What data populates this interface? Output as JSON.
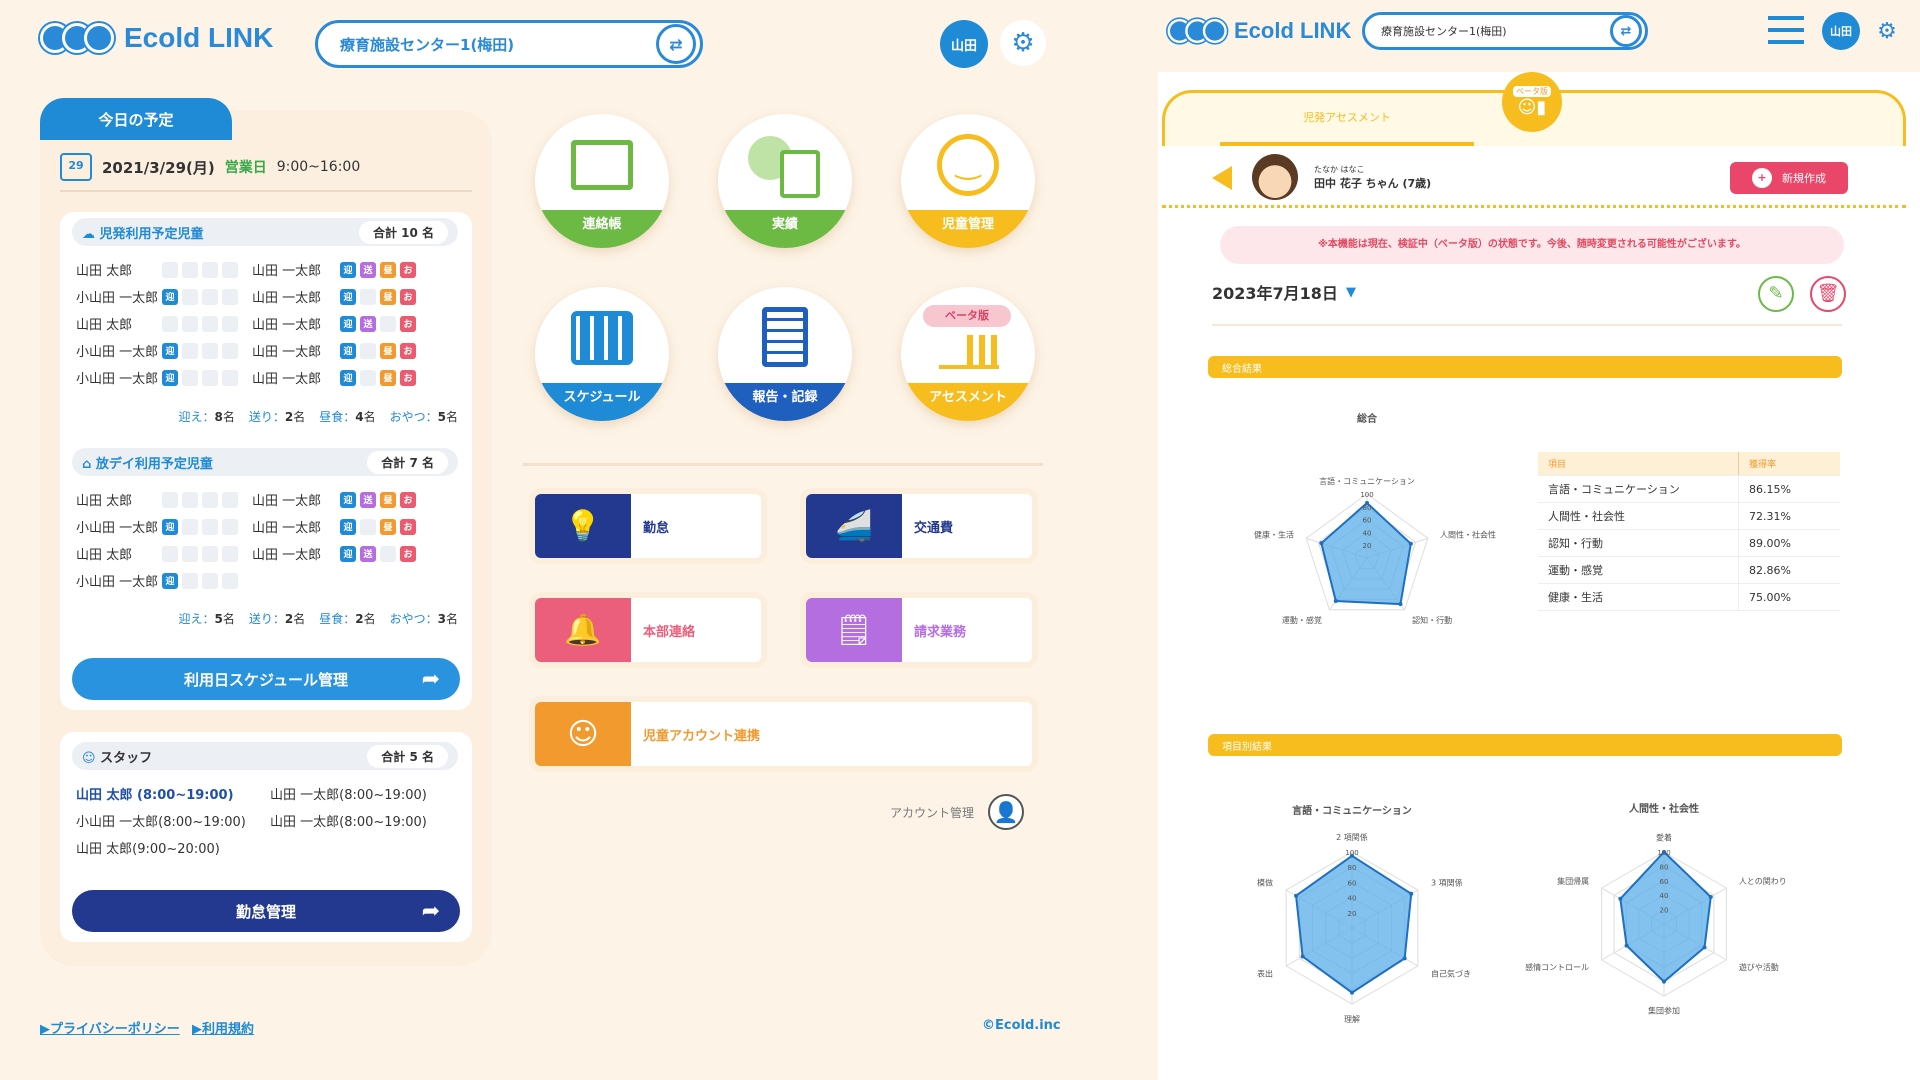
{
  "left": {
    "app_name": "Ecold LINK",
    "facility": "療育施設センター1(梅田)",
    "user_short": "山田",
    "today_tab": "今日の予定",
    "date": "2021/3/29(月)",
    "day_type": "営業日",
    "hours": "9:00~16:00",
    "cal_day": "29",
    "section1": {
      "title": "児発利用予定児童",
      "total": "合計 10 名",
      "rows": [
        {
          "a": "山田 太郎",
          "b": "山田 一太郎"
        },
        {
          "a": "小山田 一太郎",
          "b": "山田 一太郎"
        },
        {
          "a": "山田 太郎",
          "b": "山田 一太郎"
        },
        {
          "a": "小山田 一太郎",
          "b": "山田 一太郎"
        },
        {
          "a": "小山田 一太郎",
          "b": "山田 一太郎"
        }
      ],
      "summary": {
        "pickup": "8",
        "dropoff": "2",
        "lunch": "4",
        "snack": "5"
      }
    },
    "section2": {
      "title": "放デイ利用予定児童",
      "total": "合計 7 名",
      "rows": [
        {
          "a": "山田 太郎",
          "b": "山田 一太郎"
        },
        {
          "a": "小山田 一太郎",
          "b": "山田 一太郎"
        },
        {
          "a": "山田 太郎",
          "b": "山田 一太郎"
        },
        {
          "a": "小山田 一太郎",
          "b": ""
        }
      ],
      "summary": {
        "pickup": "5",
        "dropoff": "2",
        "lunch": "2",
        "snack": "3"
      }
    },
    "labels": {
      "pickup": "迎え：",
      "dropoff": "送り：",
      "lunch": "昼食：",
      "snack": "おやつ：",
      "unit": "名"
    },
    "box_labels": {
      "mukae": "迎",
      "okuri": "送",
      "hiru": "昼",
      "oyatsu": "お"
    },
    "schedule_button": "利用日スケジュール管理",
    "staff": {
      "title": "スタッフ",
      "total": "合計 5 名",
      "list": [
        "山田 太郎 (8:00~19:00)",
        "山田 一太郎(8:00~19:00)",
        "小山田 一太郎(8:00~19:00)",
        "山田 一太郎(8:00~19:00)",
        "山田 太郎(9:00~20:00)"
      ]
    },
    "attendance_button": "勤怠管理",
    "circles": [
      "連絡帳",
      "実績",
      "児童管理",
      "スケジュール",
      "報告・記録",
      "アセスメント"
    ],
    "beta": "ベータ版",
    "menu": [
      "勤怠",
      "交通費",
      "本部連絡",
      "請求業務",
      "児童アカウント連携"
    ],
    "account": "アカウント管理",
    "footer": {
      "privacy": "▶プライバシーポリシー",
      "terms": "▶利用規約",
      "copyright": "©Ecold.inc"
    }
  },
  "right": {
    "app_name": "Ecold LINK",
    "facility": "療育施設センター1(梅田)",
    "user_short": "山田",
    "tab": "児発アセスメント",
    "beta": "ベータ版",
    "child_kana": "たなか はなこ",
    "child_name": "田中 花子 ちゃん (7歳)",
    "new_button": "新規作成",
    "notice": "※本機能は現在、検証中（ベータ版）の状態です。今後、随時変更される可能性がございます。",
    "date": "2023年7月18日",
    "section_total": "総合結果",
    "section_items": "項目別結果",
    "table_head": [
      "項目",
      "獲得率"
    ],
    "table_rows": [
      [
        "言語・コミュニケーション",
        "86.15%"
      ],
      [
        "人間性・社会性",
        "72.31%"
      ],
      [
        "認知・行動",
        "89.00%"
      ],
      [
        "運動・感覚",
        "82.86%"
      ],
      [
        "健康・生活",
        "75.00%"
      ]
    ]
  },
  "chart_data": [
    {
      "type": "radar",
      "title": "総合",
      "categories": [
        "言語・コミュニケーション",
        "人間性・社会性",
        "認知・行動",
        "運動・感覚",
        "健康・生活"
      ],
      "values": [
        86,
        72,
        89,
        83,
        75
      ],
      "ticks": [
        "100",
        "80",
        "60",
        "40",
        "20"
      ],
      "range": [
        0,
        100
      ]
    },
    {
      "type": "radar",
      "title": "言語・コミュニケーション",
      "categories": [
        "2 項関係",
        "3 項関係",
        "自己気づき",
        "理解",
        "表出",
        "模倣"
      ],
      "values": [
        95,
        90,
        80,
        85,
        75,
        85
      ],
      "ticks": [
        "100",
        "80",
        "60",
        "40",
        "20"
      ],
      "range": [
        0,
        100
      ]
    },
    {
      "type": "radar",
      "title": "人間性・社会性",
      "categories": [
        "愛着",
        "人との関わり",
        "遊びや活動",
        "集団参加",
        "感情コントロール",
        "集団帰属"
      ],
      "values": [
        100,
        75,
        65,
        80,
        60,
        70
      ],
      "ticks": [
        "100",
        "80",
        "60",
        "40",
        "20"
      ],
      "range": [
        0,
        100
      ]
    }
  ]
}
